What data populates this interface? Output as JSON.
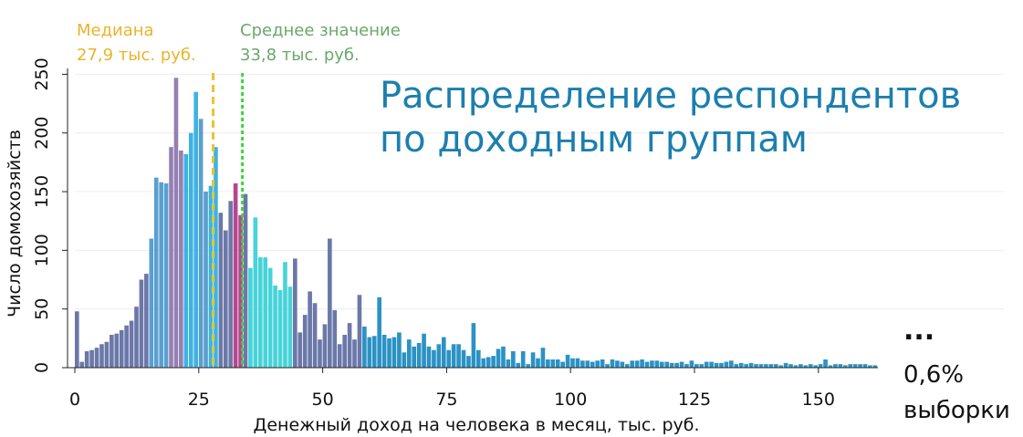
{
  "chart_data": {
    "type": "bar",
    "title": [
      "Распределение респондентов",
      "по доходным группам"
    ],
    "xlabel": "Денежный доход на человека в месяц, тыс. руб.",
    "ylabel": "Число домохозяйств",
    "xlim": [
      0,
      162
    ],
    "ylim": [
      0,
      255
    ],
    "xticks": [
      0,
      25,
      50,
      75,
      100,
      125,
      150
    ],
    "yticks": [
      0,
      50,
      100,
      150,
      200,
      250
    ],
    "bin_width": 1,
    "colors": {
      "purple": "#6b78a8",
      "steel": "#5a9fd0",
      "mauve": "#9580b2",
      "sky": "#3fb3e0",
      "teal": "#47d3d8",
      "magenta": "#b5478f",
      "blue": "#2b92c5",
      "median": "#e9c430",
      "mean": "#3cd63c"
    },
    "x": [
      0.5,
      1.5,
      2.5,
      3.5,
      4.5,
      5.5,
      6.5,
      7.5,
      8.5,
      9.5,
      10.5,
      11.5,
      12.5,
      13.5,
      14.5,
      15.5,
      16.5,
      17.5,
      18.5,
      19.5,
      20.5,
      21.5,
      22.5,
      23.5,
      24.5,
      25.5,
      26.5,
      27.5,
      28.5,
      29.5,
      30.5,
      31.5,
      32.5,
      33.5,
      34.5,
      35.5,
      36.5,
      37.5,
      38.5,
      39.5,
      40.5,
      41.5,
      42.5,
      43.5,
      44.5,
      45.5,
      46.5,
      47.5,
      48.5,
      49.5,
      50.5,
      51.5,
      52.5,
      53.5,
      54.5,
      55.5,
      56.5,
      57.5,
      58.5,
      59.5,
      60.5,
      61.5,
      62.5,
      63.5,
      64.5,
      65.5,
      66.5,
      67.5,
      68.5,
      69.5,
      70.5,
      71.5,
      72.5,
      73.5,
      74.5,
      75.5,
      76.5,
      77.5,
      78.5,
      79.5,
      80.5,
      81.5,
      82.5,
      83.5,
      84.5,
      85.5,
      86.5,
      87.5,
      88.5,
      89.5,
      90.5,
      91.5,
      92.5,
      93.5,
      94.5,
      95.5,
      96.5,
      97.5,
      98.5,
      99.5,
      100.5,
      101.5,
      102.5,
      103.5,
      104.5,
      105.5,
      106.5,
      107.5,
      108.5,
      109.5,
      110.5,
      111.5,
      112.5,
      113.5,
      114.5,
      115.5,
      116.5,
      117.5,
      118.5,
      119.5,
      120.5,
      121.5,
      122.5,
      123.5,
      124.5,
      125.5,
      126.5,
      127.5,
      128.5,
      129.5,
      130.5,
      131.5,
      132.5,
      133.5,
      134.5,
      135.5,
      136.5,
      137.5,
      138.5,
      139.5,
      140.5,
      141.5,
      142.5,
      143.5,
      144.5,
      145.5,
      146.5,
      147.5,
      148.5,
      149.5,
      150.5,
      151.5,
      152.5,
      153.5,
      154.5,
      155.5,
      156.5,
      157.5,
      158.5,
      159.5,
      160.5,
      161.5
    ],
    "values": [
      48,
      5,
      14,
      15,
      17,
      20,
      22,
      28,
      29,
      32,
      36,
      40,
      52,
      75,
      80,
      110,
      162,
      158,
      157,
      188,
      247,
      185,
      182,
      200,
      235,
      212,
      150,
      155,
      188,
      132,
      117,
      142,
      157,
      130,
      148,
      85,
      128,
      94,
      94,
      85,
      70,
      66,
      90,
      69,
      93,
      30,
      45,
      65,
      55,
      24,
      37,
      110,
      49,
      20,
      28,
      38,
      24,
      62,
      35,
      26,
      27,
      60,
      28,
      25,
      26,
      30,
      13,
      24,
      18,
      21,
      29,
      18,
      15,
      20,
      26,
      15,
      20,
      20,
      15,
      10,
      38,
      15,
      8,
      9,
      10,
      16,
      18,
      7,
      14,
      4,
      14,
      3,
      13,
      8,
      17,
      7,
      7,
      7,
      5,
      11,
      8,
      8,
      6,
      6,
      5,
      6,
      7,
      3,
      7,
      6,
      5,
      3,
      6,
      6,
      7,
      5,
      6,
      6,
      5,
      5,
      4,
      4,
      5,
      3,
      6,
      3,
      3,
      5,
      5,
      4,
      4,
      5,
      6,
      3,
      4,
      3,
      4,
      3,
      3,
      3,
      3,
      3,
      2,
      4,
      3,
      2,
      3,
      2,
      3,
      2,
      3,
      7,
      2,
      3,
      3,
      2,
      3,
      3,
      3,
      3,
      2,
      2
    ],
    "bar_colors": [
      "purple",
      "purple",
      "purple",
      "purple",
      "purple",
      "purple",
      "purple",
      "purple",
      "purple",
      "purple",
      "purple",
      "purple",
      "purple",
      "purple",
      "purple",
      "steel",
      "steel",
      "steel",
      "steel",
      "mauve",
      "mauve",
      "mauve",
      "sky",
      "sky",
      "sky",
      "steel",
      "steel",
      "sky",
      "sky",
      "purple",
      "purple",
      "purple",
      "magenta",
      "magenta",
      "purple",
      "teal",
      "teal",
      "teal",
      "teal",
      "teal",
      "teal",
      "teal",
      "teal",
      "teal",
      "purple",
      "purple",
      "purple",
      "purple",
      "purple",
      "purple",
      "purple",
      "purple",
      "purple",
      "purple",
      "purple",
      "purple",
      "purple",
      "purple",
      "blue",
      "blue",
      "blue",
      "blue",
      "blue",
      "blue",
      "blue",
      "blue",
      "blue",
      "blue",
      "blue",
      "blue",
      "blue",
      "blue",
      "blue",
      "blue",
      "blue",
      "blue",
      "blue",
      "blue",
      "blue",
      "blue",
      "blue",
      "blue",
      "blue",
      "blue",
      "blue",
      "blue",
      "blue",
      "blue",
      "blue",
      "blue",
      "blue",
      "blue",
      "blue",
      "blue",
      "blue",
      "blue",
      "blue",
      "blue",
      "blue",
      "blue",
      "blue",
      "blue",
      "blue",
      "blue",
      "blue",
      "blue",
      "blue",
      "blue",
      "blue",
      "blue",
      "blue",
      "blue",
      "blue",
      "blue",
      "blue",
      "blue",
      "blue",
      "blue",
      "blue",
      "blue",
      "blue",
      "blue",
      "blue",
      "blue",
      "blue",
      "blue",
      "blue",
      "blue",
      "blue",
      "blue",
      "blue",
      "blue",
      "blue",
      "blue",
      "blue",
      "blue",
      "blue",
      "blue",
      "blue",
      "blue",
      "blue",
      "blue",
      "blue",
      "blue",
      "blue",
      "blue",
      "blue",
      "blue",
      "blue",
      "blue",
      "blue",
      "blue",
      "blue",
      "blue",
      "blue",
      "blue",
      "blue",
      "blue",
      "blue",
      "blue",
      "blue",
      "blue"
    ],
    "reference_lines": [
      {
        "x": 27.9,
        "style": "dashed",
        "color": "median"
      },
      {
        "x": 33.8,
        "style": "dotted",
        "color": "mean"
      }
    ],
    "annotations": [
      {
        "line1": "Медиана",
        "line2": "27,9 тыс. руб.",
        "color": "median"
      },
      {
        "line1": "Среднее значение",
        "line2": "33,8 тыс. руб.",
        "color": "mean"
      }
    ],
    "grid": "horizontal"
  },
  "side_note": {
    "ellipsis": "...",
    "percent": "0,6%",
    "label": "выборки"
  }
}
